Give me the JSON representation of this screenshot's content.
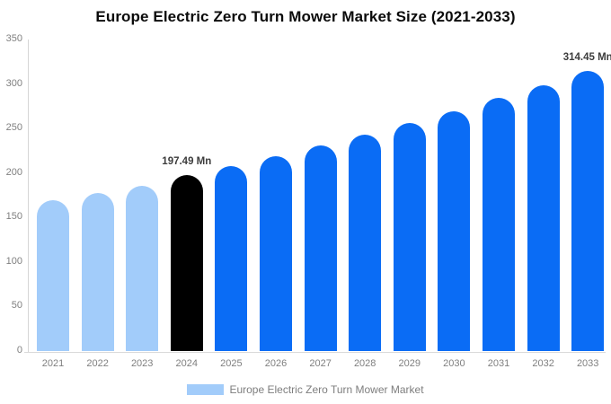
{
  "chart_data": {
    "type": "bar",
    "title": "Europe Electric Zero Turn Mower Market Size (2021-2033)",
    "unit": "Mn",
    "categories": [
      "2021",
      "2022",
      "2023",
      "2024",
      "2025",
      "2026",
      "2027",
      "2028",
      "2029",
      "2030",
      "2031",
      "2032",
      "2033"
    ],
    "values": [
      169,
      178,
      186,
      197.49,
      208,
      219,
      231,
      243,
      256,
      269,
      284,
      299,
      314.45
    ],
    "bar_roles": [
      "past",
      "past",
      "past",
      "current",
      "forecast",
      "forecast",
      "forecast",
      "forecast",
      "forecast",
      "forecast",
      "forecast",
      "forecast",
      "forecast"
    ],
    "colors": {
      "past": "#a2ccfa",
      "current": "#000000",
      "forecast": "#0a6cf5"
    },
    "annotations": [
      {
        "category": "2024",
        "label": "197.49 Mn"
      },
      {
        "category": "2033",
        "label": "314.45 Mn"
      }
    ],
    "xlabel": "",
    "ylabel": "",
    "ylim": [
      0,
      350
    ],
    "y_ticks": [
      0,
      50,
      100,
      150,
      200,
      250,
      300,
      350
    ],
    "grid": "off",
    "legend_position": "bottom",
    "legend": [
      {
        "label": "Europe Electric Zero Turn Mower Market",
        "swatch_color": "#a2ccfa"
      }
    ]
  }
}
